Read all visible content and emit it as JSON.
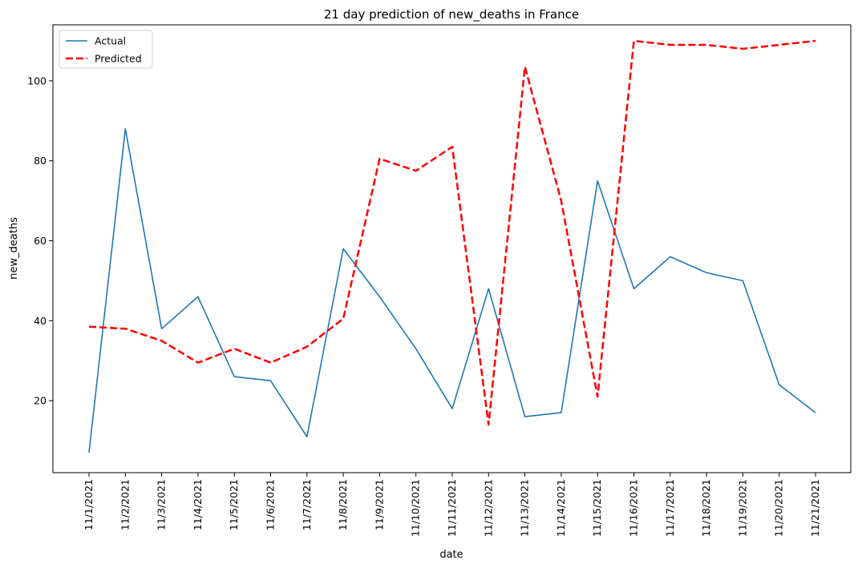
{
  "chart_data": {
    "type": "line",
    "title": "21 day prediction of new_deaths in France",
    "xlabel": "date",
    "ylabel": "new_deaths",
    "categories": [
      "11/1/2021",
      "11/2/2021",
      "11/3/2021",
      "11/4/2021",
      "11/5/2021",
      "11/6/2021",
      "11/7/2021",
      "11/8/2021",
      "11/9/2021",
      "11/10/2021",
      "11/11/2021",
      "11/12/2021",
      "11/13/2021",
      "11/14/2021",
      "11/15/2021",
      "11/16/2021",
      "11/17/2021",
      "11/18/2021",
      "11/19/2021",
      "11/20/2021",
      "11/21/2021"
    ],
    "series": [
      {
        "name": "Actual",
        "color": "#1f77b4",
        "style": "solid",
        "values": [
          7,
          88,
          38,
          46,
          26,
          25,
          11,
          58,
          46,
          33,
          18,
          48,
          16,
          17,
          75,
          48,
          56,
          52,
          50,
          24,
          17
        ]
      },
      {
        "name": "Predicted",
        "color": "#ff0000",
        "style": "dashed",
        "values": [
          38.5,
          38,
          35,
          29.5,
          33,
          29.5,
          33.5,
          40.5,
          80.5,
          77.5,
          83.5,
          14,
          103.5,
          70,
          21,
          110,
          109,
          109,
          108,
          109,
          110
        ]
      }
    ],
    "yticks": [
      20,
      40,
      60,
      80,
      100
    ],
    "ylim": [
      2,
      114
    ],
    "legend_position": "top-left",
    "grid": false
  }
}
